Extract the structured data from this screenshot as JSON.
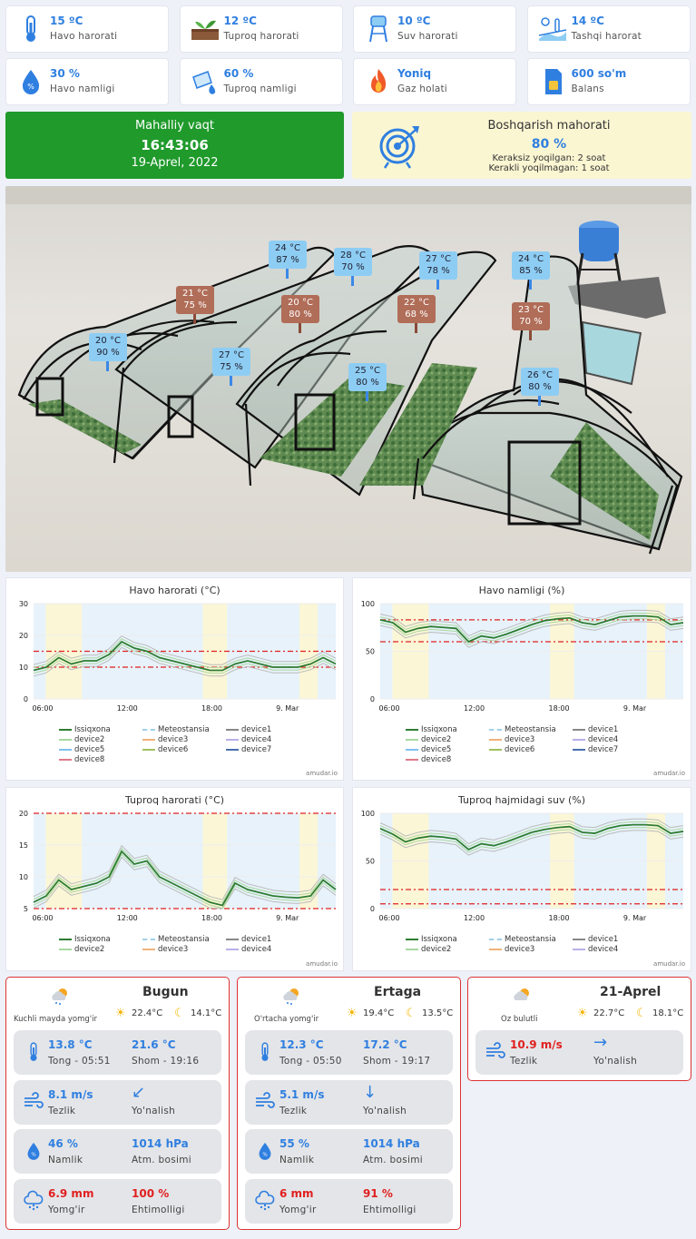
{
  "stats": [
    {
      "value": "15 ºC",
      "label": "Havo harorati",
      "icon": "thermometer-icon"
    },
    {
      "value": "12 ºC",
      "label": "Tuproq harorati",
      "icon": "soil-icon"
    },
    {
      "value": "10 ºC",
      "label": "Suv harorati",
      "icon": "water-tower-icon"
    },
    {
      "value": "14 ºC",
      "label": "Tashqi harorat",
      "icon": "outdoor-icon"
    },
    {
      "value": "30 %",
      "label": "Havo namligi",
      "icon": "humidity-drop-icon"
    },
    {
      "value": "60 %",
      "label": "Tuproq namligi",
      "icon": "soil-moisture-icon"
    },
    {
      "value": "Yoniq",
      "label": "Gaz holati",
      "icon": "flame-icon"
    },
    {
      "value": "600 so'm",
      "label": "Balans",
      "icon": "sim-card-icon"
    }
  ],
  "local_time": {
    "title": "Mahalliy vaqt",
    "time": "16:43:06",
    "date": "19-Aprel, 2022"
  },
  "control": {
    "title": "Boshqarish mahorati",
    "value": "80 %",
    "line1": "Keraksiz yoqilgan: 2 soat",
    "line2": "Kerakli yoqilmagan: 1 soat"
  },
  "sensors": [
    {
      "t": "20 °C",
      "h": "90 %",
      "kind": "b"
    },
    {
      "t": "21 °C",
      "h": "75 %",
      "kind": "r"
    },
    {
      "t": "24 °C",
      "h": "87 %",
      "kind": "b"
    },
    {
      "t": "27 °C",
      "h": "75 %",
      "kind": "b"
    },
    {
      "t": "20 °C",
      "h": "80 %",
      "kind": "r"
    },
    {
      "t": "28 °C",
      "h": "70 %",
      "kind": "b"
    },
    {
      "t": "25 °C",
      "h": "80 %",
      "kind": "b"
    },
    {
      "t": "27 °C",
      "h": "78 %",
      "kind": "b"
    },
    {
      "t": "22 °C",
      "h": "68 %",
      "kind": "r"
    },
    {
      "t": "24 °C",
      "h": "85 %",
      "kind": "b"
    },
    {
      "t": "23 °C",
      "h": "70 %",
      "kind": "r"
    },
    {
      "t": "26 °C",
      "h": "80 %",
      "kind": "b"
    }
  ],
  "chart_data": [
    {
      "type": "line",
      "title": "Havo harorati (°C)",
      "ylim": [
        0,
        30
      ],
      "yticks": [
        "0",
        "10",
        "20",
        "30"
      ],
      "xticks": [
        "06:00",
        "12:00",
        "18:00",
        "9. Mar"
      ],
      "series": [
        {
          "name": "Issiqxona",
          "values": [
            9,
            10,
            13,
            11,
            12,
            12,
            14,
            18,
            16,
            15,
            13,
            12,
            11,
            10,
            9,
            9,
            11,
            12,
            11,
            10,
            10,
            10,
            11,
            13,
            11
          ]
        }
      ],
      "thresholds": [
        10,
        15
      ],
      "legend": [
        "Issiqxona",
        "Meteostansia",
        "device1",
        "device2",
        "device3",
        "device4",
        "device5",
        "device6",
        "device7",
        "device8"
      ],
      "watermark": "amudar.io"
    },
    {
      "type": "line",
      "title": "Havo namligi (%)",
      "ylim": [
        0,
        100
      ],
      "yticks": [
        "0",
        "50",
        "100"
      ],
      "xticks": [
        "06:00",
        "12:00",
        "18:00",
        "9. Mar"
      ],
      "series": [
        {
          "name": "Issiqxona",
          "values": [
            83,
            80,
            70,
            74,
            76,
            75,
            74,
            60,
            66,
            64,
            68,
            73,
            78,
            82,
            84,
            85,
            80,
            78,
            82,
            86,
            87,
            87,
            86,
            78,
            80
          ]
        }
      ],
      "thresholds": [
        60,
        83
      ],
      "legend": [
        "Issiqxona",
        "Meteostansia",
        "device1",
        "device2",
        "device3",
        "device4",
        "device5",
        "device6",
        "device7",
        "device8"
      ],
      "watermark": "amudar.io"
    },
    {
      "type": "line",
      "title": "Tuproq harorati (°C)",
      "ylim": [
        5,
        20
      ],
      "yticks": [
        "5",
        "10",
        "15",
        "20"
      ],
      "xticks": [
        "06:00",
        "12:00",
        "18:00",
        "9. Mar"
      ],
      "series": [
        {
          "name": "Issiqxona",
          "values": [
            6,
            7,
            9.5,
            8,
            8.5,
            9,
            10,
            14,
            12,
            12.5,
            10,
            9,
            8,
            7,
            6,
            5.5,
            9,
            8,
            7.5,
            7,
            6.8,
            6.7,
            7,
            9.5,
            8
          ]
        }
      ],
      "thresholds": [
        5,
        20
      ],
      "legend": [
        "Issiqxona",
        "Meteostansia",
        "device1",
        "device2",
        "device3",
        "device4"
      ],
      "watermark": "amudar.io"
    },
    {
      "type": "line",
      "title": "Tuproq hajmidagi suv (%)",
      "ylim": [
        0,
        100
      ],
      "yticks": [
        "0",
        "50",
        "100"
      ],
      "xticks": [
        "06:00",
        "12:00",
        "18:00",
        "9. Mar"
      ],
      "series": [
        {
          "name": "Issiqxona",
          "values": [
            84,
            78,
            70,
            74,
            76,
            75,
            73,
            62,
            68,
            66,
            70,
            75,
            80,
            83,
            85,
            86,
            80,
            79,
            84,
            87,
            88,
            88,
            87,
            79,
            81
          ]
        }
      ],
      "thresholds": [
        5,
        20
      ],
      "legend": [
        "Issiqxona",
        "Meteostansia",
        "device1",
        "device2",
        "device3",
        "device4"
      ],
      "watermark": "amudar.io"
    }
  ],
  "weather": [
    {
      "title": "Bugun",
      "desc": "Kuchli mayda yomg'ir",
      "day": "22.4°C",
      "night": "14.1°C",
      "rows": [
        {
          "icon": "thermometer-icon",
          "v1": "13.8 °C",
          "l1": "Tong - 05:51",
          "v2": "21.6 °C",
          "l2": "Shom - 19:16",
          "arrow": ""
        },
        {
          "icon": "wind-icon",
          "v1": "8.1 m/s",
          "l1": "Tezlik",
          "v2": "",
          "l2": "Yo'nalish",
          "arrow": "↙"
        },
        {
          "icon": "humidity-drop-icon",
          "v1": "46 %",
          "l1": "Namlik",
          "v2": "1014 hPa",
          "l2": "Atm. bosimi",
          "arrow": ""
        },
        {
          "icon": "rain-cloud-icon",
          "v1": "6.9 mm",
          "l1": "Yomg'ir",
          "v2": "100 %",
          "l2": "Ehtimolligi",
          "arrow": "",
          "red": true
        }
      ]
    },
    {
      "title": "Ertaga",
      "desc": "O'rtacha yomg'ir",
      "day": "19.4°C",
      "night": "13.5°C",
      "rows": [
        {
          "icon": "thermometer-icon",
          "v1": "12.3 °C",
          "l1": "Tong - 05:50",
          "v2": "17.2 °C",
          "l2": "Shom - 19:17",
          "arrow": ""
        },
        {
          "icon": "wind-icon",
          "v1": "5.1 m/s",
          "l1": "Tezlik",
          "v2": "",
          "l2": "Yo'nalish",
          "arrow": "↓"
        },
        {
          "icon": "humidity-drop-icon",
          "v1": "55 %",
          "l1": "Namlik",
          "v2": "1014 hPa",
          "l2": "Atm. bosimi",
          "arrow": ""
        },
        {
          "icon": "rain-cloud-icon",
          "v1": "6 mm",
          "l1": "Yomg'ir",
          "v2": "91 %",
          "l2": "Ehtimolligi",
          "arrow": "",
          "red": true
        }
      ]
    },
    {
      "title": "21-Aprel",
      "desc": "Oz bulutli",
      "day": "22.7°C",
      "night": "18.1°C",
      "rows": [
        {
          "icon": "wind-icon",
          "v1": "10.9 m/s",
          "l1": "Tezlik",
          "v2": "",
          "l2": "Yo'nalish",
          "arrow": "→",
          "red1": true
        }
      ]
    }
  ]
}
